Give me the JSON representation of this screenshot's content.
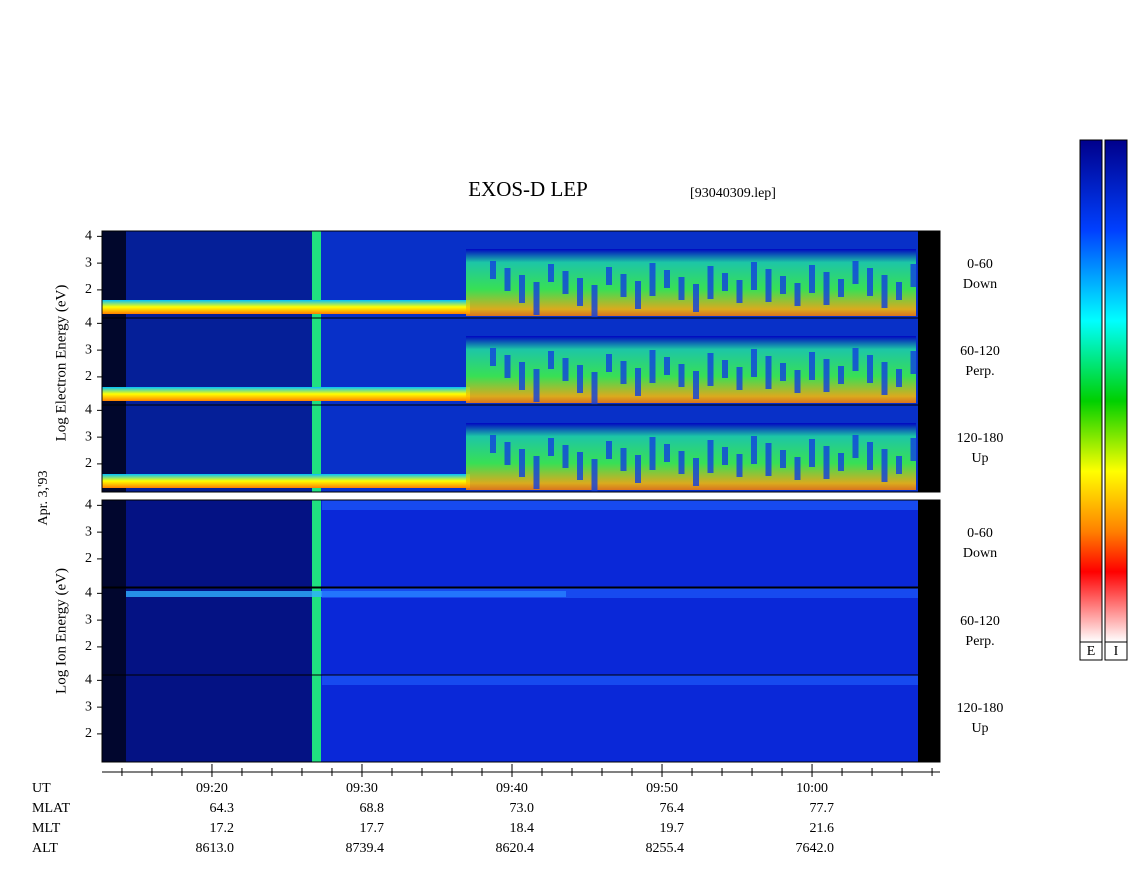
{
  "chart_data": {
    "type": "spectrogram",
    "title": "EXOS-D LEP",
    "file_label": "[93040309.lep]",
    "date_label": "Apr. 3,'93",
    "groups": [
      {
        "ylabel": "Log Electron Energy (eV)"
      },
      {
        "ylabel": "Log Ion Energy (eV)"
      }
    ],
    "panels": [
      {
        "group": 0,
        "side_label": [
          "0-60",
          "Down"
        ]
      },
      {
        "group": 0,
        "side_label": [
          "60-120",
          "Perp."
        ]
      },
      {
        "group": 0,
        "side_label": [
          "120-180",
          "Up"
        ]
      },
      {
        "group": 1,
        "side_label": [
          "0-60",
          "Down"
        ]
      },
      {
        "group": 1,
        "side_label": [
          "60-120",
          "Perp."
        ]
      },
      {
        "group": 1,
        "side_label": [
          "120-180",
          "Up"
        ]
      }
    ],
    "ylim": [
      0.95,
      4.2
    ],
    "yticks": [
      2,
      3,
      4
    ],
    "xlim": [
      552.67,
      608.53
    ],
    "xticks": [
      {
        "value": 560,
        "label": "09:20"
      },
      {
        "value": 570,
        "label": "09:30"
      },
      {
        "value": 580,
        "label": "09:40"
      },
      {
        "value": 590,
        "label": "09:50"
      },
      {
        "value": 600,
        "label": "10:00"
      }
    ],
    "xminor": [
      554,
      556,
      558,
      562,
      564,
      566,
      568,
      572,
      574,
      576,
      578,
      582,
      584,
      586,
      588,
      592,
      594,
      596,
      598,
      602,
      604,
      606,
      608
    ],
    "ephemeris": [
      {
        "name": "UT",
        "values": []
      },
      {
        "name": "MLAT",
        "values": [
          "64.3",
          "68.8",
          "73.0",
          "76.4",
          "77.7"
        ]
      },
      {
        "name": "MLT",
        "values": [
          "17.2",
          "17.7",
          "18.4",
          "19.7",
          "21.6"
        ]
      },
      {
        "name": "ALT",
        "values": [
          "8613.0",
          "8739.4",
          "8620.4",
          "8255.4",
          "7642.0"
        ]
      }
    ],
    "colorbar_labels": [
      "E",
      "I"
    ]
  }
}
